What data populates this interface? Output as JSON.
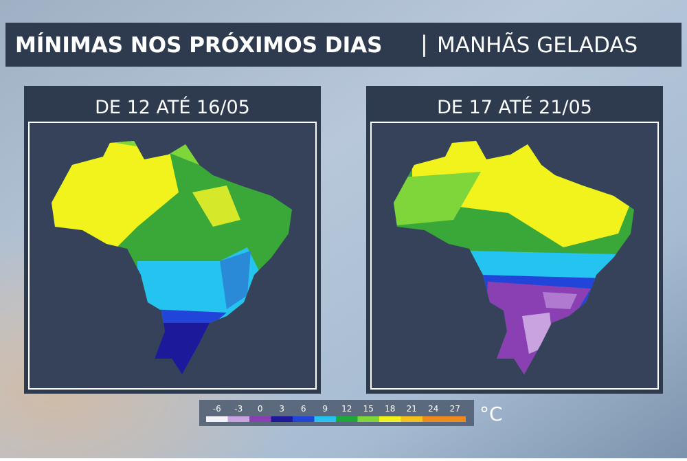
{
  "header": {
    "title": "MÍNIMAS NOS PRÓXIMOS DIAS",
    "separator": "|",
    "subtitle": "MANHÃS GELADAS"
  },
  "panels": [
    {
      "title": "DE 12 ATÉ 16/05"
    },
    {
      "title": "DE 17 ATÉ 21/05"
    }
  ],
  "legend": {
    "ticks": [
      -6,
      -3,
      0,
      3,
      6,
      9,
      12,
      15,
      18,
      21,
      24,
      27
    ],
    "colors": [
      "#f4f4f8",
      "#c9a3df",
      "#8a3fb3",
      "#1c1a9a",
      "#2045d8",
      "#25c4f0",
      "#1fa83a",
      "#7fd63a",
      "#f2f21c",
      "#f5c21c",
      "#f08a1c",
      "#f08a1c"
    ],
    "unit": "°C"
  }
}
